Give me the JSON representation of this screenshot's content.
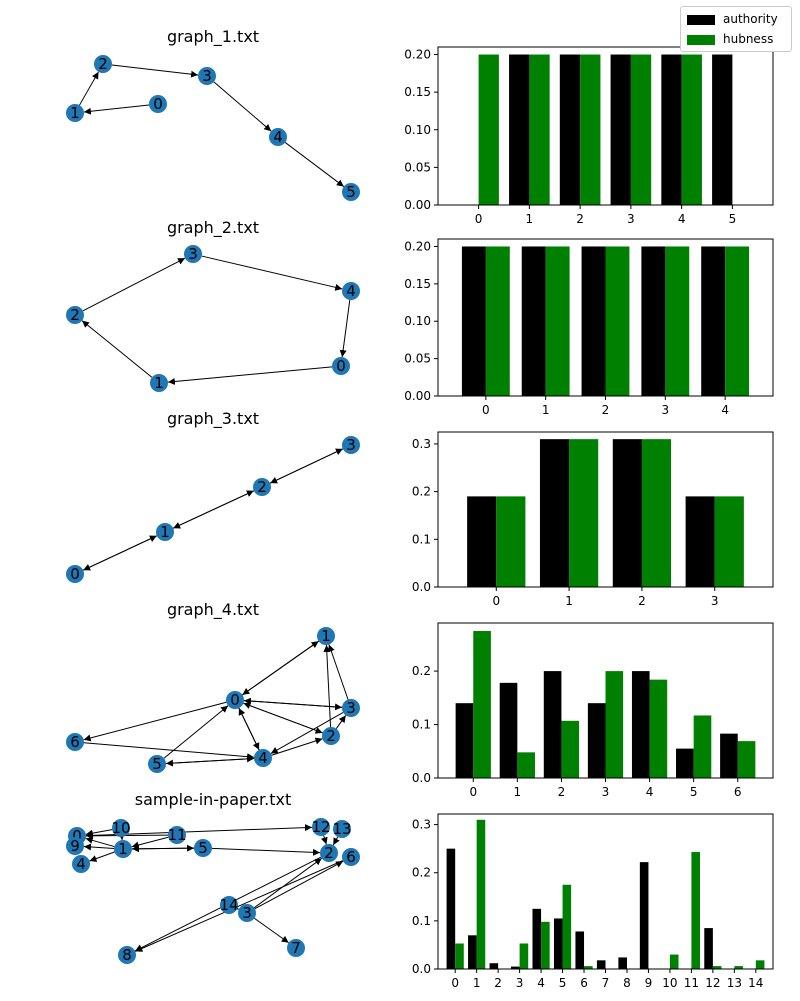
{
  "legend": {
    "authority_label": "authority",
    "hubness_label": "hubness",
    "authority_color": "#000000",
    "hubness_color": "#008000"
  },
  "node_color": "#1f77b4",
  "chart_data": [
    {
      "type": "network",
      "title": "graph_1.txt",
      "nodes": [
        "0",
        "1",
        "2",
        "3",
        "4",
        "5"
      ],
      "edges": [
        [
          "0",
          "1"
        ],
        [
          "1",
          "2"
        ],
        [
          "2",
          "3"
        ],
        [
          "3",
          "4"
        ],
        [
          "4",
          "5"
        ]
      ]
    },
    {
      "type": "bar",
      "title": "",
      "categories": [
        "0",
        "1",
        "2",
        "3",
        "4",
        "5"
      ],
      "series": [
        {
          "name": "authority",
          "values": [
            0,
            0.2,
            0.2,
            0.2,
            0.2,
            0.2
          ]
        },
        {
          "name": "hubness",
          "values": [
            0.2,
            0.2,
            0.2,
            0.2,
            0.2,
            0
          ]
        }
      ],
      "yticks": [
        "0.00",
        "0.05",
        "0.10",
        "0.15",
        "0.20"
      ],
      "ylim": [
        0,
        0.21
      ]
    },
    {
      "type": "network",
      "title": "graph_2.txt",
      "nodes": [
        "0",
        "1",
        "2",
        "3",
        "4"
      ],
      "edges": [
        [
          "0",
          "1"
        ],
        [
          "1",
          "2"
        ],
        [
          "2",
          "3"
        ],
        [
          "3",
          "4"
        ],
        [
          "4",
          "0"
        ]
      ]
    },
    {
      "type": "bar",
      "title": "",
      "categories": [
        "0",
        "1",
        "2",
        "3",
        "4"
      ],
      "series": [
        {
          "name": "authority",
          "values": [
            0.2,
            0.2,
            0.2,
            0.2,
            0.2
          ]
        },
        {
          "name": "hubness",
          "values": [
            0.2,
            0.2,
            0.2,
            0.2,
            0.2
          ]
        }
      ],
      "yticks": [
        "0.00",
        "0.05",
        "0.10",
        "0.15",
        "0.20"
      ],
      "ylim": [
        0,
        0.21
      ]
    },
    {
      "type": "network",
      "title": "graph_3.txt",
      "nodes": [
        "0",
        "1",
        "2",
        "3"
      ],
      "edges": [
        [
          "0",
          "1"
        ],
        [
          "1",
          "0"
        ],
        [
          "1",
          "2"
        ],
        [
          "2",
          "1"
        ],
        [
          "2",
          "3"
        ],
        [
          "3",
          "2"
        ]
      ]
    },
    {
      "type": "bar",
      "title": "",
      "categories": [
        "0",
        "1",
        "2",
        "3"
      ],
      "series": [
        {
          "name": "authority",
          "values": [
            0.19,
            0.31,
            0.31,
            0.19
          ]
        },
        {
          "name": "hubness",
          "values": [
            0.19,
            0.31,
            0.31,
            0.19
          ]
        }
      ],
      "yticks": [
        "0.0",
        "0.1",
        "0.2",
        "0.3"
      ],
      "ylim": [
        0,
        0.325
      ]
    },
    {
      "type": "network",
      "title": "graph_4.txt",
      "nodes": [
        "0",
        "1",
        "2",
        "3",
        "4",
        "5",
        "6"
      ],
      "edges": [
        [
          "0",
          "1"
        ],
        [
          "1",
          "0"
        ],
        [
          "0",
          "2"
        ],
        [
          "2",
          "0"
        ],
        [
          "0",
          "3"
        ],
        [
          "3",
          "0"
        ],
        [
          "0",
          "4"
        ],
        [
          "4",
          "0"
        ],
        [
          "0",
          "6"
        ],
        [
          "2",
          "1"
        ],
        [
          "2",
          "3"
        ],
        [
          "3",
          "1"
        ],
        [
          "3",
          "4"
        ],
        [
          "4",
          "2"
        ],
        [
          "4",
          "5"
        ],
        [
          "5",
          "4"
        ],
        [
          "5",
          "0"
        ],
        [
          "6",
          "4"
        ]
      ]
    },
    {
      "type": "bar",
      "title": "",
      "categories": [
        "0",
        "1",
        "2",
        "3",
        "4",
        "5",
        "6"
      ],
      "series": [
        {
          "name": "authority",
          "values": [
            0.14,
            0.178,
            0.2,
            0.14,
            0.2,
            0.055,
            0.083
          ]
        },
        {
          "name": "hubness",
          "values": [
            0.275,
            0.048,
            0.107,
            0.2,
            0.184,
            0.117,
            0.069
          ]
        }
      ],
      "yticks": [
        "0.0",
        "0.1",
        "0.2"
      ],
      "ylim": [
        0,
        0.29
      ]
    },
    {
      "type": "network",
      "title": "sample-in-paper.txt",
      "nodes": [
        "0",
        "1",
        "2",
        "3",
        "4",
        "5",
        "6",
        "7",
        "8",
        "9",
        "10",
        "11",
        "12",
        "13",
        "14"
      ],
      "edges": [
        [
          "1",
          "0"
        ],
        [
          "1",
          "9"
        ],
        [
          "1",
          "4"
        ],
        [
          "1",
          "5"
        ],
        [
          "5",
          "1"
        ],
        [
          "0",
          "9"
        ],
        [
          "9",
          "0"
        ],
        [
          "10",
          "0"
        ],
        [
          "11",
          "0"
        ],
        [
          "0",
          "12"
        ],
        [
          "12",
          "2"
        ],
        [
          "13",
          "2"
        ],
        [
          "5",
          "2"
        ],
        [
          "3",
          "2"
        ],
        [
          "3",
          "6"
        ],
        [
          "3",
          "7"
        ],
        [
          "14",
          "3"
        ],
        [
          "2",
          "8"
        ],
        [
          "6",
          "8"
        ],
        [
          "11",
          "1"
        ],
        [
          "10",
          "1"
        ]
      ]
    },
    {
      "type": "bar",
      "title": "",
      "categories": [
        "0",
        "1",
        "2",
        "3",
        "4",
        "5",
        "6",
        "7",
        "8",
        "9",
        "10",
        "11",
        "12",
        "13",
        "14"
      ],
      "series": [
        {
          "name": "authority",
          "values": [
            0.25,
            0.07,
            0.012,
            0.005,
            0.125,
            0.105,
            0.078,
            0.018,
            0.024,
            0.222,
            0,
            0,
            0.085,
            0,
            0
          ]
        },
        {
          "name": "hubness",
          "values": [
            0.053,
            0.31,
            0,
            0.053,
            0.098,
            0.175,
            0.006,
            0,
            0,
            0,
            0.03,
            0.243,
            0.006,
            0.006,
            0.018
          ]
        }
      ],
      "yticks": [
        "0.0",
        "0.1",
        "0.2",
        "0.3"
      ],
      "ylim": [
        0,
        0.322
      ]
    }
  ]
}
